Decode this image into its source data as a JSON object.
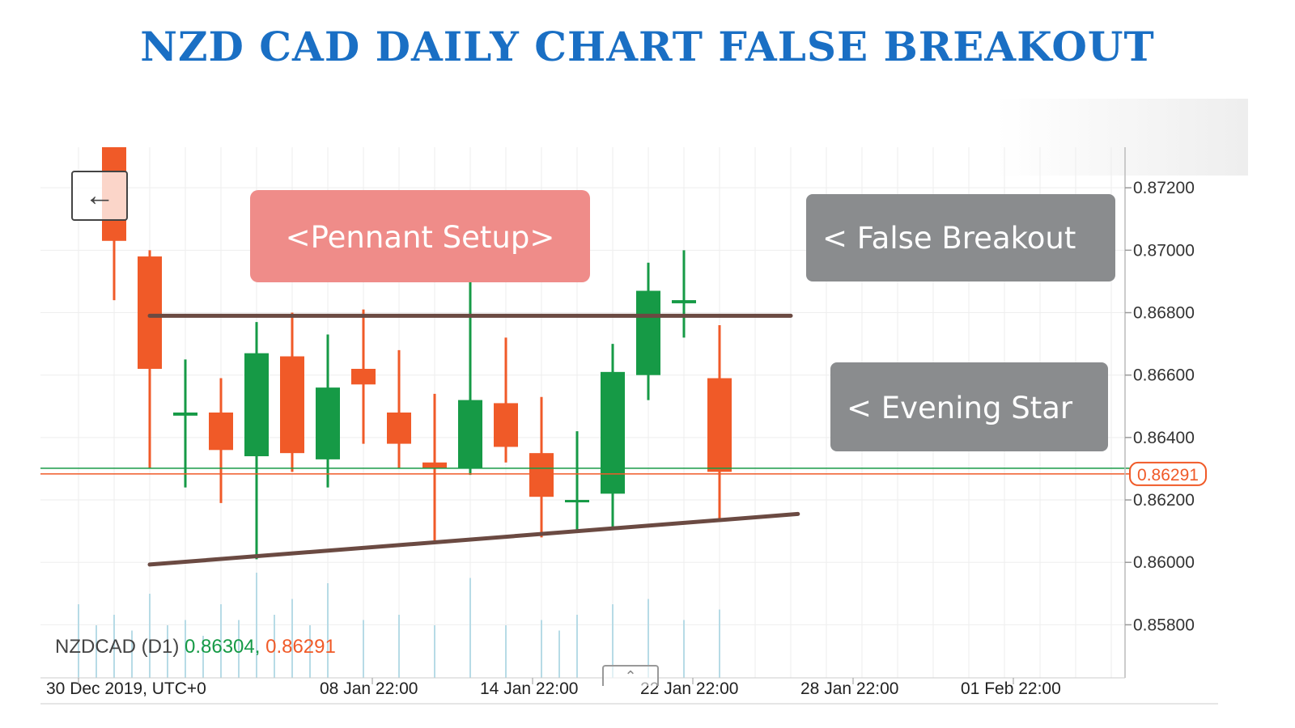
{
  "title": "NZD CAD DAILY CHART FALSE BREAKOUT",
  "ohlc": {
    "symbol": "NZDCAD (D1)",
    "bid": "0.86304,",
    "ask": "0.86291"
  },
  "annotations": {
    "pennant": "<Pennant Setup>",
    "false_breakout": "< False Breakout",
    "evening_star": "< Evening Star"
  },
  "icons": {
    "back": "arrow-left-icon",
    "collapse": "chevron-up-icon"
  },
  "colors": {
    "bull": "#169a46",
    "bear": "#f05a28",
    "trendline": "#6b4a42",
    "pennant_box": "#ef8a87",
    "gray_box": "#8a8c8e",
    "title": "#1a6fc4"
  },
  "chart_data": {
    "type": "candlestick",
    "title": "NZD CAD DAILY CHART FALSE BREAKOUT",
    "y_ticks": [
      "0.87200",
      "0.87000",
      "0.86800",
      "0.86600",
      "0.86400",
      "0.86200",
      "0.86000",
      "0.85800"
    ],
    "y_tick_values": [
      0.872,
      0.87,
      0.868,
      0.866,
      0.864,
      0.862,
      0.86,
      0.858
    ],
    "ylim": [
      0.8563,
      0.8733
    ],
    "x_labels": [
      "30 Dec 2019, UTC+0",
      "08 Jan 22:00",
      "14 Jan 22:00",
      "22 Jan 22:00",
      "28 Jan 22:00",
      "01 Feb 22:00"
    ],
    "x_label_slots": [
      0,
      6,
      10.5,
      15,
      19.5,
      24
    ],
    "current_price": 0.86291,
    "current_price_label": "0.86291",
    "bid_price": 0.86304,
    "candles": [
      {
        "slot": 0,
        "open": 0.8733,
        "high": 0.8733,
        "low": 0.8684,
        "close": 0.8703
      },
      {
        "slot": 1,
        "open": 0.8698,
        "high": 0.87,
        "low": 0.863,
        "close": 0.8662
      },
      {
        "slot": 2,
        "open": 0.8647,
        "high": 0.8665,
        "low": 0.8624,
        "close": 0.8648
      },
      {
        "slot": 3,
        "open": 0.8648,
        "high": 0.8659,
        "low": 0.8619,
        "close": 0.8636
      },
      {
        "slot": 4,
        "open": 0.8634,
        "high": 0.8677,
        "low": 0.8601,
        "close": 0.8667
      },
      {
        "slot": 5,
        "open": 0.8666,
        "high": 0.868,
        "low": 0.8629,
        "close": 0.8635
      },
      {
        "slot": 6,
        "open": 0.8633,
        "high": 0.8673,
        "low": 0.8624,
        "close": 0.8656
      },
      {
        "slot": 7,
        "open": 0.8662,
        "high": 0.8681,
        "low": 0.8638,
        "close": 0.8657
      },
      {
        "slot": 8,
        "open": 0.8648,
        "high": 0.8668,
        "low": 0.863,
        "close": 0.8638
      },
      {
        "slot": 9,
        "open": 0.8632,
        "high": 0.8654,
        "low": 0.8607,
        "close": 0.863
      },
      {
        "slot": 10,
        "open": 0.863,
        "high": 0.869,
        "low": 0.8628,
        "close": 0.8652
      },
      {
        "slot": 11,
        "open": 0.8651,
        "high": 0.8672,
        "low": 0.8632,
        "close": 0.8637
      },
      {
        "slot": 12,
        "open": 0.8635,
        "high": 0.8653,
        "low": 0.8608,
        "close": 0.8621
      },
      {
        "slot": 13,
        "open": 0.862,
        "high": 0.8642,
        "low": 0.861,
        "close": 0.862
      },
      {
        "slot": 14,
        "open": 0.8622,
        "high": 0.867,
        "low": 0.8611,
        "close": 0.8661
      },
      {
        "slot": 15,
        "open": 0.866,
        "high": 0.8696,
        "low": 0.8652,
        "close": 0.8687
      },
      {
        "slot": 16,
        "open": 0.8683,
        "high": 0.87,
        "low": 0.8672,
        "close": 0.8684
      },
      {
        "slot": 17,
        "open": 0.8659,
        "high": 0.8676,
        "low": 0.8613,
        "close": 0.8629
      }
    ],
    "volume_bars": [
      {
        "slot": -1,
        "h": 0.7
      },
      {
        "slot": -0.5,
        "h": 0.5
      },
      {
        "slot": 0,
        "h": 0.6
      },
      {
        "slot": 0.5,
        "h": 0.45
      },
      {
        "slot": 1,
        "h": 0.8
      },
      {
        "slot": 1.5,
        "h": 0.5
      },
      {
        "slot": 2,
        "h": 0.55
      },
      {
        "slot": 2.5,
        "h": 0.4
      },
      {
        "slot": 3,
        "h": 0.7
      },
      {
        "slot": 3.5,
        "h": 0.55
      },
      {
        "slot": 4,
        "h": 1.0
      },
      {
        "slot": 4.5,
        "h": 0.6
      },
      {
        "slot": 5,
        "h": 0.75
      },
      {
        "slot": 5.5,
        "h": 0.5
      },
      {
        "slot": 6,
        "h": 0.9
      },
      {
        "slot": 7,
        "h": 0.55
      },
      {
        "slot": 8,
        "h": 0.6
      },
      {
        "slot": 9,
        "h": 0.5
      },
      {
        "slot": 10,
        "h": 0.95
      },
      {
        "slot": 11,
        "h": 0.5
      },
      {
        "slot": 12,
        "h": 0.55
      },
      {
        "slot": 12.5,
        "h": 0.45
      },
      {
        "slot": 13,
        "h": 0.6
      },
      {
        "slot": 14,
        "h": 0.7
      },
      {
        "slot": 15,
        "h": 0.75
      },
      {
        "slot": 16,
        "h": 0.55
      },
      {
        "slot": 17,
        "h": 0.65
      }
    ],
    "trendlines": [
      {
        "name": "resistance",
        "slot1": 1,
        "price1": 0.8679,
        "slot2": 19,
        "price2": 0.8679
      },
      {
        "name": "support",
        "slot1": 1,
        "price1": 0.85993,
        "slot2": 19.2,
        "price2": 0.86155
      }
    ],
    "grid": true
  }
}
